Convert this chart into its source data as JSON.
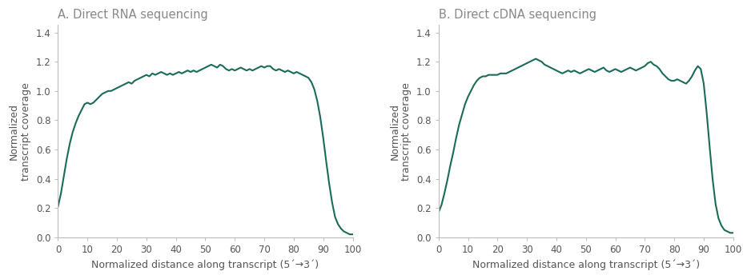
{
  "title_A": "A. Direct RNA sequencing",
  "title_B": "B. Direct cDNA sequencing",
  "xlabel": "Normalized distance along transcript (5´→3´)",
  "ylabel": "Normalized\ntranscript coverage",
  "line_color": "#1a6b5a",
  "ylim": [
    0,
    1.45
  ],
  "xlim": [
    0,
    100
  ],
  "yticks": [
    0,
    0.2,
    0.4,
    0.6,
    0.8,
    1.0,
    1.2,
    1.4
  ],
  "xticks": [
    0,
    10,
    20,
    30,
    40,
    50,
    60,
    70,
    80,
    90,
    100
  ],
  "title_color": "#888888",
  "title_fontsize": 10.5,
  "axis_fontsize": 9,
  "tick_fontsize": 8.5,
  "linewidth": 1.5,
  "curve_A_x": [
    0,
    1,
    2,
    3,
    4,
    5,
    6,
    7,
    8,
    9,
    10,
    11,
    12,
    13,
    14,
    15,
    16,
    17,
    18,
    19,
    20,
    21,
    22,
    23,
    24,
    25,
    26,
    27,
    28,
    29,
    30,
    31,
    32,
    33,
    34,
    35,
    36,
    37,
    38,
    39,
    40,
    41,
    42,
    43,
    44,
    45,
    46,
    47,
    48,
    49,
    50,
    51,
    52,
    53,
    54,
    55,
    56,
    57,
    58,
    59,
    60,
    61,
    62,
    63,
    64,
    65,
    66,
    67,
    68,
    69,
    70,
    71,
    72,
    73,
    74,
    75,
    76,
    77,
    78,
    79,
    80,
    81,
    82,
    83,
    84,
    85,
    86,
    87,
    88,
    89,
    90,
    91,
    92,
    93,
    94,
    95,
    96,
    97,
    98,
    99,
    100
  ],
  "curve_A_y": [
    0.21,
    0.3,
    0.42,
    0.54,
    0.64,
    0.72,
    0.78,
    0.83,
    0.87,
    0.91,
    0.92,
    0.91,
    0.92,
    0.94,
    0.96,
    0.98,
    0.99,
    1.0,
    1.0,
    1.01,
    1.02,
    1.03,
    1.04,
    1.05,
    1.06,
    1.05,
    1.07,
    1.08,
    1.09,
    1.1,
    1.11,
    1.1,
    1.12,
    1.11,
    1.12,
    1.13,
    1.12,
    1.11,
    1.12,
    1.11,
    1.12,
    1.13,
    1.12,
    1.13,
    1.14,
    1.13,
    1.14,
    1.13,
    1.14,
    1.15,
    1.16,
    1.17,
    1.18,
    1.17,
    1.16,
    1.18,
    1.17,
    1.15,
    1.14,
    1.15,
    1.14,
    1.15,
    1.16,
    1.15,
    1.14,
    1.15,
    1.14,
    1.15,
    1.16,
    1.17,
    1.16,
    1.17,
    1.17,
    1.15,
    1.14,
    1.15,
    1.14,
    1.13,
    1.14,
    1.13,
    1.12,
    1.13,
    1.12,
    1.11,
    1.1,
    1.09,
    1.06,
    1.01,
    0.93,
    0.82,
    0.68,
    0.52,
    0.37,
    0.24,
    0.14,
    0.09,
    0.06,
    0.04,
    0.03,
    0.02,
    0.02
  ],
  "curve_B_x": [
    0,
    1,
    2,
    3,
    4,
    5,
    6,
    7,
    8,
    9,
    10,
    11,
    12,
    13,
    14,
    15,
    16,
    17,
    18,
    19,
    20,
    21,
    22,
    23,
    24,
    25,
    26,
    27,
    28,
    29,
    30,
    31,
    32,
    33,
    34,
    35,
    36,
    37,
    38,
    39,
    40,
    41,
    42,
    43,
    44,
    45,
    46,
    47,
    48,
    49,
    50,
    51,
    52,
    53,
    54,
    55,
    56,
    57,
    58,
    59,
    60,
    61,
    62,
    63,
    64,
    65,
    66,
    67,
    68,
    69,
    70,
    71,
    72,
    73,
    74,
    75,
    76,
    77,
    78,
    79,
    80,
    81,
    82,
    83,
    84,
    85,
    86,
    87,
    88,
    89,
    90,
    91,
    92,
    93,
    94,
    95,
    96,
    97,
    98,
    99,
    100
  ],
  "curve_B_y": [
    0.17,
    0.22,
    0.3,
    0.39,
    0.49,
    0.58,
    0.68,
    0.77,
    0.84,
    0.91,
    0.96,
    1.0,
    1.04,
    1.07,
    1.09,
    1.1,
    1.1,
    1.11,
    1.11,
    1.11,
    1.11,
    1.12,
    1.12,
    1.12,
    1.13,
    1.14,
    1.15,
    1.16,
    1.17,
    1.18,
    1.19,
    1.2,
    1.21,
    1.22,
    1.21,
    1.2,
    1.18,
    1.17,
    1.16,
    1.15,
    1.14,
    1.13,
    1.12,
    1.13,
    1.14,
    1.13,
    1.14,
    1.13,
    1.12,
    1.13,
    1.14,
    1.15,
    1.14,
    1.13,
    1.14,
    1.15,
    1.16,
    1.14,
    1.13,
    1.14,
    1.15,
    1.14,
    1.13,
    1.14,
    1.15,
    1.16,
    1.15,
    1.14,
    1.15,
    1.16,
    1.17,
    1.19,
    1.2,
    1.18,
    1.17,
    1.15,
    1.12,
    1.1,
    1.08,
    1.07,
    1.07,
    1.08,
    1.07,
    1.06,
    1.05,
    1.07,
    1.1,
    1.14,
    1.17,
    1.15,
    1.05,
    0.85,
    0.62,
    0.4,
    0.23,
    0.13,
    0.08,
    0.05,
    0.04,
    0.03,
    0.03
  ]
}
